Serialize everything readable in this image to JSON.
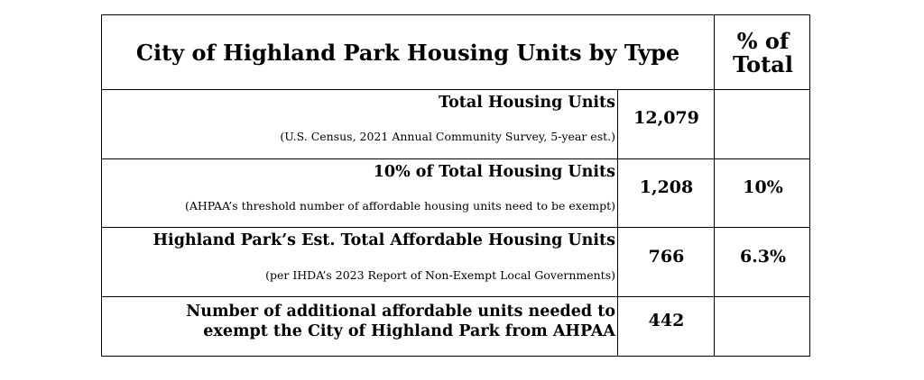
{
  "table": {
    "title": "City of Highland Park Housing Units by Type",
    "pct_header_line1": "% of",
    "pct_header_line2": "Total",
    "rows": [
      {
        "label": "Total Housing Units",
        "sublabel": "(U.S. Census, 2021 Annual Community Survey, 5-year est.)",
        "value": "12,079",
        "percent": ""
      },
      {
        "label": "10% of Total Housing Units",
        "sublabel": "(AHPAA’s threshold number of affordable housing units need to be exempt)",
        "value": "1,208",
        "percent": "10%"
      },
      {
        "label": "Highland Park’s Est. Total Affordable Housing Units",
        "sublabel": "(per IHDA’s 2023 Report of Non-Exempt Local Governments)",
        "value": "766",
        "percent": "6.3%"
      },
      {
        "label_line1": "Number of additional affordable units needed to",
        "label_line2": "exempt the City of Highland Park from AHPAA",
        "value": "442",
        "percent": ""
      }
    ]
  }
}
